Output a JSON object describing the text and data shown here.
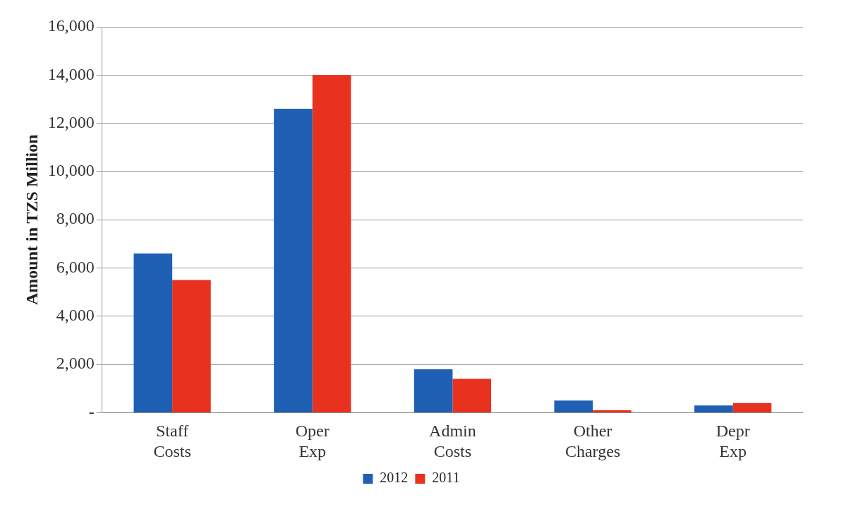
{
  "chart_data": {
    "type": "bar",
    "ylabel": "Amount in TZS Million",
    "categories": [
      "Staff Costs",
      "Oper Exp",
      "Admin Costs",
      "Other Charges",
      "Depr Exp"
    ],
    "series": [
      {
        "name": "2012",
        "color": "#1f5fb4",
        "values": [
          6600,
          12600,
          1800,
          500,
          300
        ]
      },
      {
        "name": "2011",
        "color": "#e8321f",
        "values": [
          5500,
          14000,
          1400,
          100,
          400
        ]
      }
    ],
    "ylim": [
      0,
      16000
    ],
    "yticks": [
      {
        "value": 0,
        "label": "-"
      },
      {
        "value": 2000,
        "label": "2,000"
      },
      {
        "value": 4000,
        "label": "4,000"
      },
      {
        "value": 6000,
        "label": "6,000"
      },
      {
        "value": 8000,
        "label": "8,000"
      },
      {
        "value": 10000,
        "label": "10,000"
      },
      {
        "value": 12000,
        "label": "12,000"
      },
      {
        "value": 14000,
        "label": "14,000"
      },
      {
        "value": 16000,
        "label": "16,000"
      }
    ],
    "grid": "y",
    "legend": "bottom"
  }
}
